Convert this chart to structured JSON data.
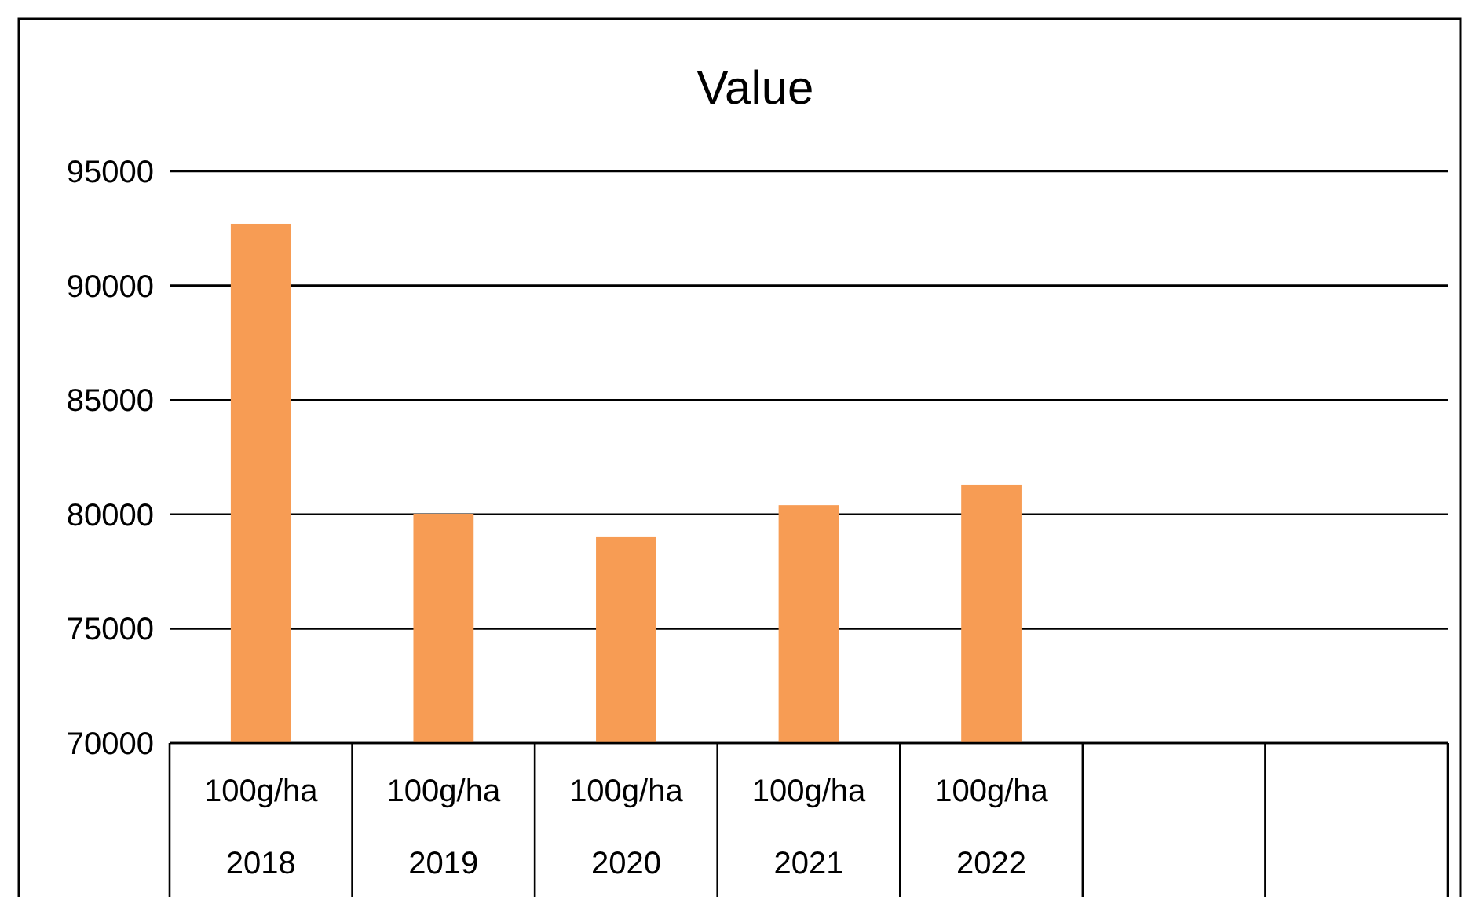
{
  "chart_data": {
    "type": "bar",
    "title": "Value",
    "categories": [
      "100g/ha 2018",
      "100g/ha 2019",
      "100g/ha 2020",
      "100g/ha 2021",
      "100g/ha 2022",
      null,
      null
    ],
    "values": [
      92700,
      80000,
      79000,
      80400,
      81300,
      null,
      null
    ],
    "color": "#f79c54",
    "ylim": [
      70000,
      95000
    ],
    "yticks": [
      70000,
      75000,
      80000,
      85000,
      90000,
      95000
    ],
    "grid": "y"
  }
}
